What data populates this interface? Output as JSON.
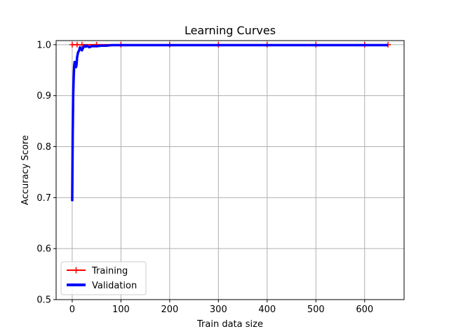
{
  "chart_data": {
    "type": "line",
    "title": "Learning Curves",
    "xlabel": "Train data size",
    "ylabel": "Accuracy Score",
    "xlim": [
      -33,
      681
    ],
    "ylim": [
      0.5,
      1.008
    ],
    "xticks": [
      0,
      100,
      200,
      300,
      400,
      500,
      600
    ],
    "yticks": [
      0.5,
      0.6,
      0.7,
      0.8,
      0.9,
      1.0
    ],
    "xtick_labels": [
      "0",
      "100",
      "200",
      "300",
      "400",
      "500",
      "600"
    ],
    "ytick_labels": [
      "0.5",
      "0.6",
      "0.7",
      "0.8",
      "0.9",
      "1.0"
    ],
    "grid": true,
    "legend_position": "lower-left",
    "series": [
      {
        "name": "Training",
        "color": "#ff0000",
        "marker": "plus",
        "x": [
          0,
          10,
          20,
          50,
          100,
          200,
          300,
          400,
          500,
          600,
          648
        ],
        "y": [
          1.0,
          1.0,
          1.0,
          1.0,
          1.0,
          1.0,
          1.0,
          1.0,
          1.0,
          1.0,
          1.0
        ]
      },
      {
        "name": "Validation",
        "color": "#0000ff",
        "marker": "none",
        "x": [
          0,
          1,
          2,
          3,
          4,
          5,
          6,
          7,
          8,
          9,
          10,
          12,
          14,
          16,
          18,
          20,
          22,
          25,
          28,
          30,
          35,
          40,
          50,
          60,
          70,
          80,
          100,
          150,
          200,
          300,
          400,
          500,
          600,
          648
        ],
        "y": [
          0.693,
          0.82,
          0.9,
          0.935,
          0.958,
          0.966,
          0.966,
          0.96,
          0.956,
          0.962,
          0.975,
          0.985,
          0.988,
          0.995,
          0.991,
          0.989,
          0.993,
          0.998,
          0.996,
          0.998,
          0.995,
          0.997,
          0.997,
          0.998,
          0.998,
          0.999,
          0.999,
          0.999,
          0.999,
          0.999,
          0.999,
          0.999,
          0.999,
          0.999
        ]
      }
    ]
  }
}
